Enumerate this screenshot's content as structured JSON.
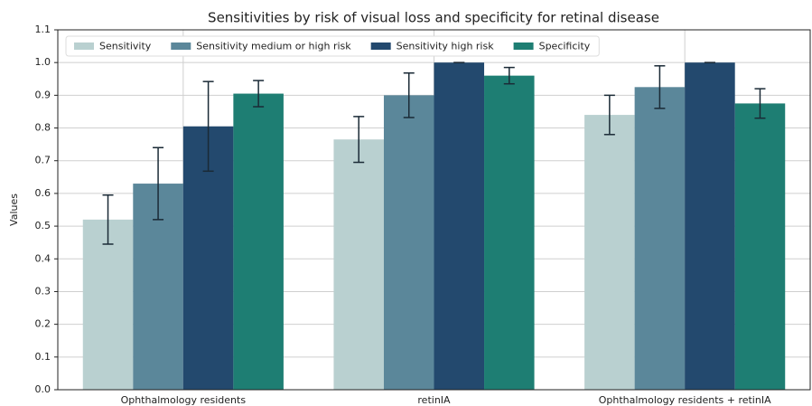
{
  "chart_data": {
    "type": "bar",
    "title": "Sensitivities by risk of visual loss and specificity for retinal disease",
    "y_label": "Values",
    "categories": [
      "Ophthalmology residents",
      "retinIA",
      "Ophthalmology residents + retinIA"
    ],
    "series": [
      {
        "name": "Sensitivity",
        "color": "#b9d0d0",
        "values": [
          0.52,
          0.765,
          0.84
        ],
        "errors": [
          0.075,
          0.07,
          0.06
        ]
      },
      {
        "name": "Sensitivity medium or high risk",
        "color": "#5b879a",
        "values": [
          0.63,
          0.9,
          0.925
        ],
        "errors": [
          0.11,
          0.068,
          0.065
        ]
      },
      {
        "name": "Sensitivity high risk",
        "color": "#23496e",
        "values": [
          0.805,
          1.0,
          1.0
        ],
        "errors": [
          0.137,
          0,
          0
        ]
      },
      {
        "name": "Specificity",
        "color": "#1e7e73",
        "values": [
          0.905,
          0.96,
          0.875
        ],
        "errors": [
          0.04,
          0.025,
          0.045
        ]
      }
    ],
    "ylim": [
      0,
      1.1
    ],
    "yticks": [
      {
        "value": 0,
        "label": "0.0"
      },
      0.1,
      0.2,
      0.3,
      0.4,
      0.5,
      0.6,
      0.7,
      0.8,
      0.9,
      {
        "value": 1,
        "label": "1.0"
      },
      1.1
    ],
    "grid": true,
    "legend": "upper left"
  }
}
